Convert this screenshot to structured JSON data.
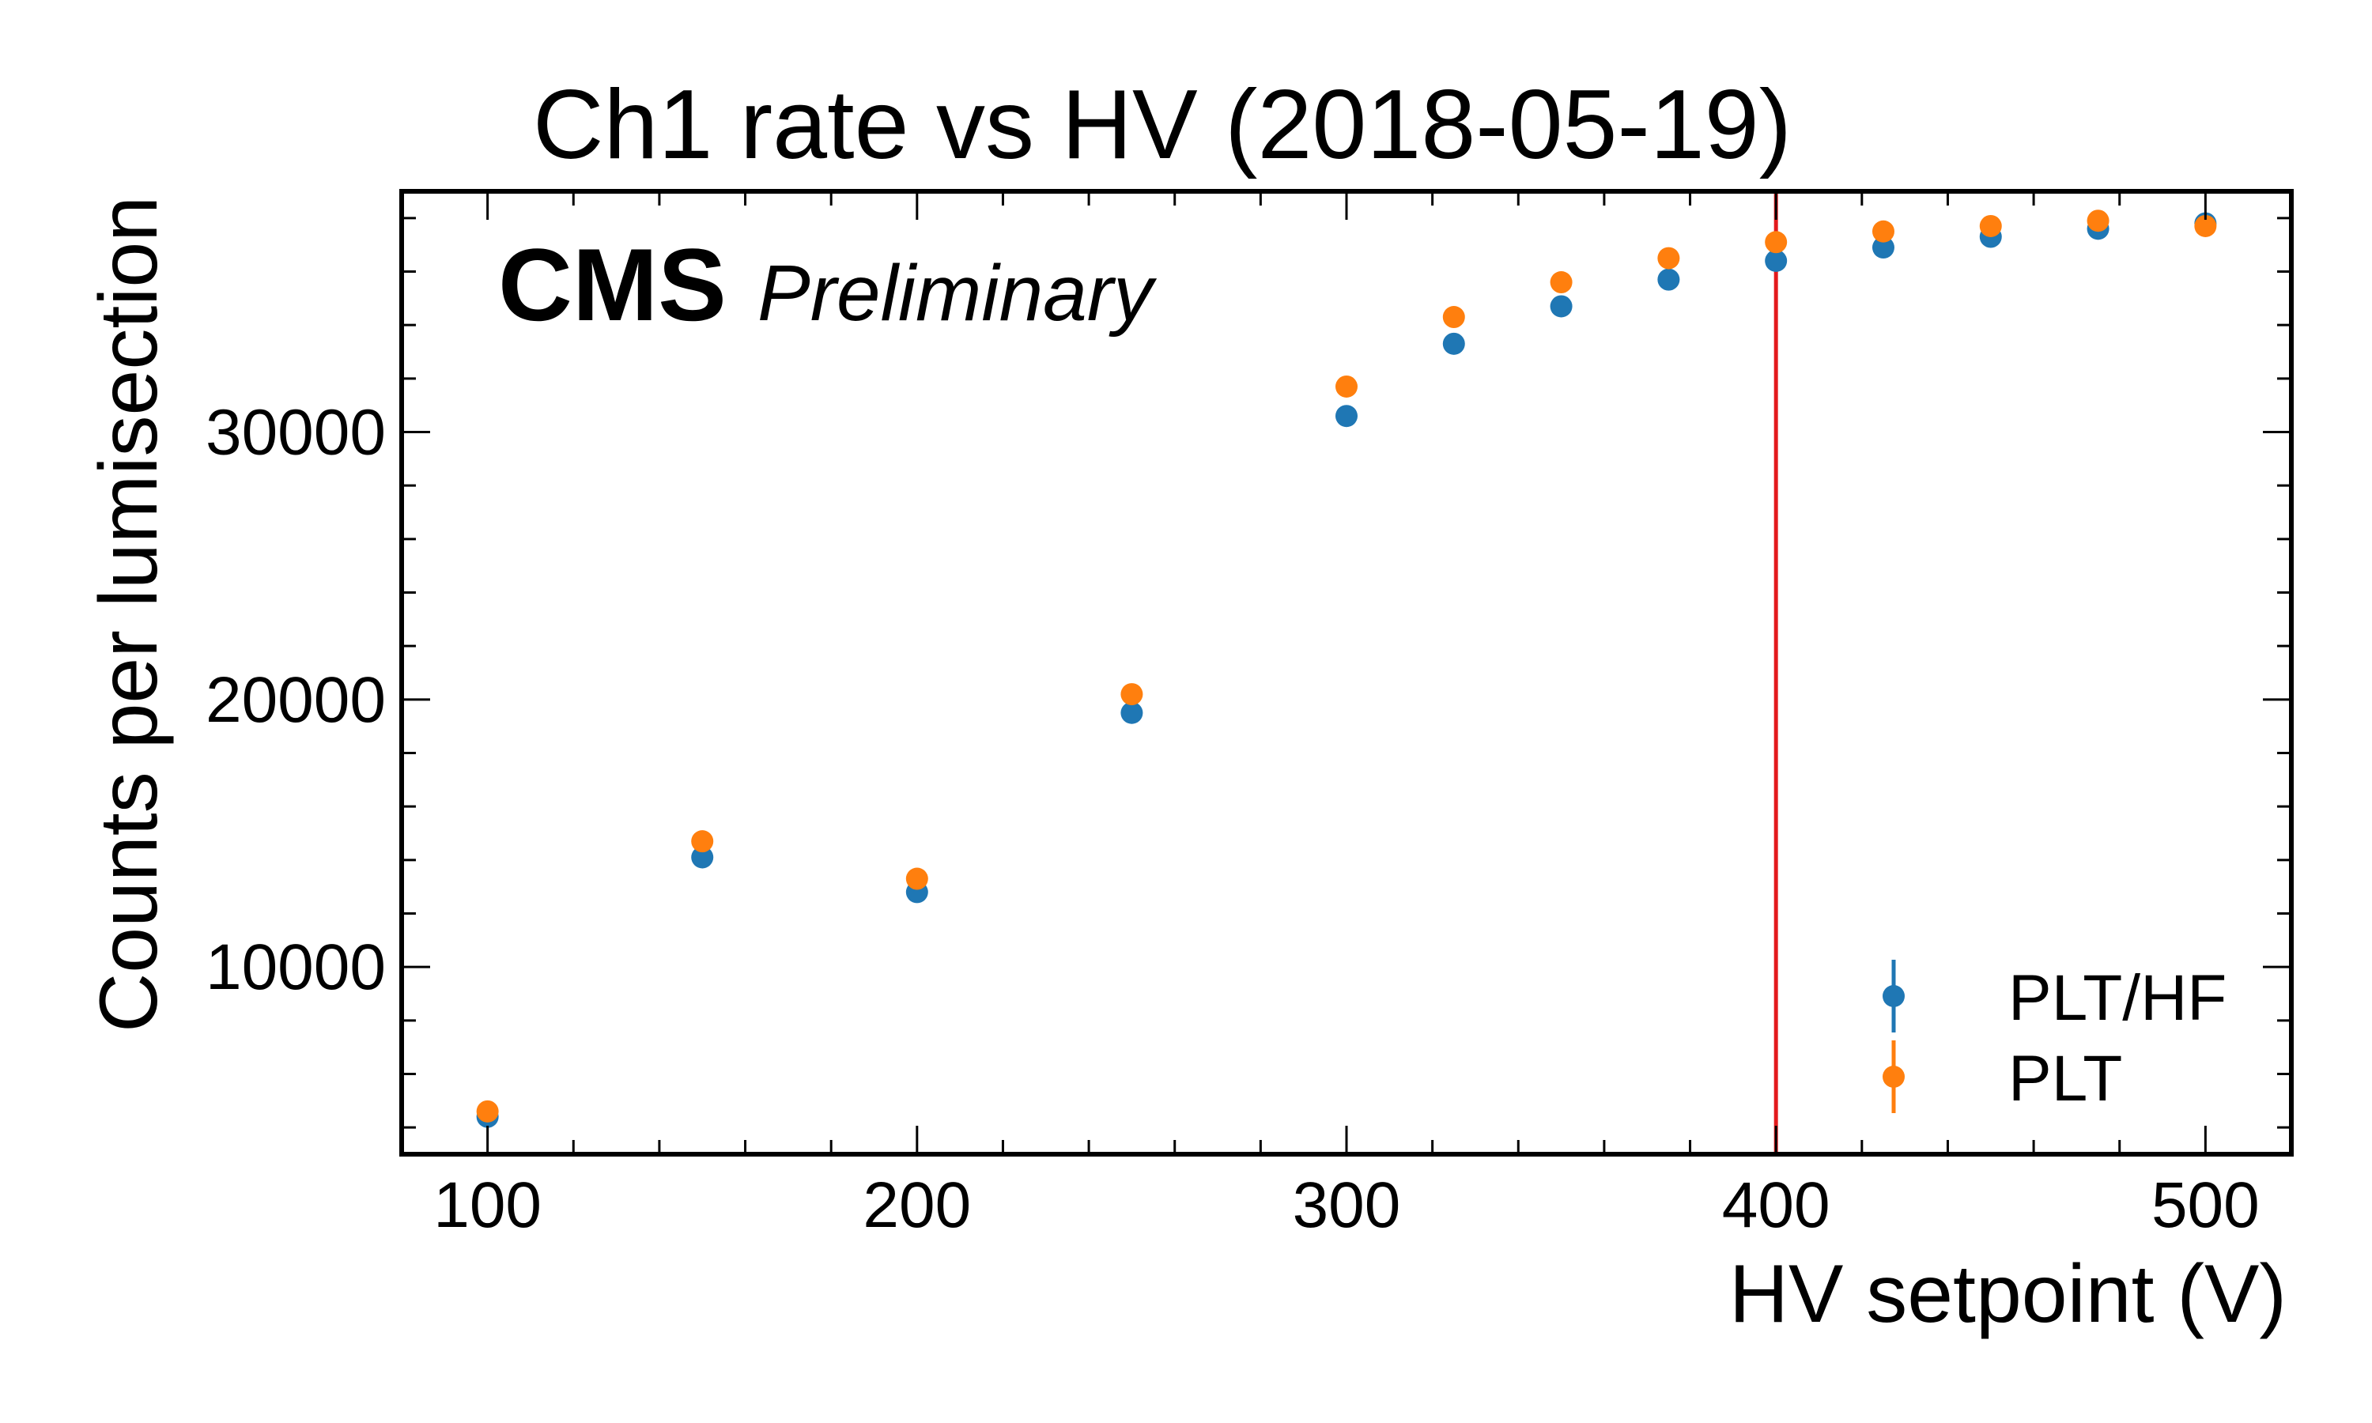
{
  "chart_data": {
    "type": "scatter",
    "title": "Ch1 rate vs HV (2018-05-19)",
    "xlabel": "HV setpoint (V)",
    "ylabel": "Counts per lumisection",
    "xlim": [
      80,
      520
    ],
    "ylim": [
      3000,
      39000
    ],
    "xticks": [
      100,
      200,
      300,
      400,
      500
    ],
    "yticks": [
      10000,
      20000,
      30000
    ],
    "grid": false,
    "legend_position": "bottom-right",
    "experiment_label": "CMS",
    "status_label": "Preliminary",
    "vertical_line": {
      "x": 400,
      "color": "#e31a1c"
    },
    "series": [
      {
        "name": "PLT/HF",
        "color": "#1f77b4",
        "x": [
          100,
          150,
          200,
          250,
          300,
          325,
          350,
          375,
          400,
          425,
          450,
          475,
          500
        ],
        "y": [
          4400,
          14100,
          12800,
          19500,
          30600,
          33300,
          34700,
          35700,
          36400,
          36900,
          37300,
          37600,
          37800
        ]
      },
      {
        "name": "PLT",
        "color": "#ff7f0e",
        "x": [
          100,
          150,
          200,
          250,
          300,
          325,
          350,
          375,
          400,
          425,
          450,
          475,
          500
        ],
        "y": [
          4600,
          14700,
          13300,
          20200,
          31700,
          34300,
          35600,
          36500,
          37100,
          37500,
          37700,
          37900,
          37700
        ]
      }
    ]
  }
}
